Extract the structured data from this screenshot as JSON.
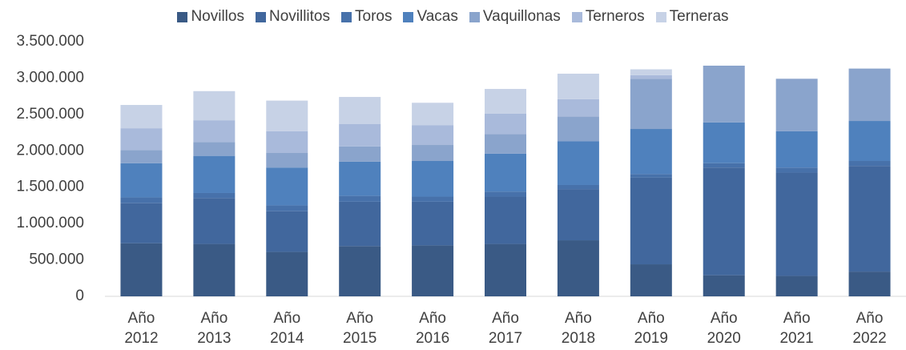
{
  "chart_data": {
    "type": "stacked_bar",
    "categories": [
      "Año 2012",
      "Año 2013",
      "Año 2014",
      "Año 2015",
      "Año 2016",
      "Año 2017",
      "Año 2018",
      "Año 2019",
      "Año 2020",
      "Año 2021",
      "Año 2022"
    ],
    "series": [
      {
        "name": "Novillos",
        "color": "#3a5a85",
        "values": [
          730000,
          720000,
          610000,
          690000,
          700000,
          720000,
          770000,
          440000,
          290000,
          280000,
          340000
        ]
      },
      {
        "name": "Novillitos",
        "color": "#41679d",
        "values": [
          550000,
          630000,
          560000,
          610000,
          600000,
          650000,
          700000,
          1190000,
          1480000,
          1420000,
          1450000
        ]
      },
      {
        "name": "Toros",
        "color": "#4771aa",
        "values": [
          80000,
          70000,
          80000,
          80000,
          70000,
          70000,
          60000,
          50000,
          60000,
          70000,
          70000
        ]
      },
      {
        "name": "Vacas",
        "color": "#4f81bd",
        "values": [
          470000,
          510000,
          520000,
          470000,
          490000,
          520000,
          600000,
          620000,
          560000,
          500000,
          550000
        ]
      },
      {
        "name": "Vaquillonas",
        "color": "#8aa4cc",
        "values": [
          180000,
          190000,
          200000,
          210000,
          220000,
          270000,
          340000,
          690000,
          780000,
          720000,
          720000
        ]
      },
      {
        "name": "Terneros",
        "color": "#a9badb",
        "values": [
          300000,
          300000,
          300000,
          310000,
          270000,
          280000,
          240000,
          50000,
          0,
          0,
          0
        ]
      },
      {
        "name": "Terneras",
        "color": "#c7d2e6",
        "values": [
          320000,
          400000,
          420000,
          370000,
          310000,
          340000,
          350000,
          80000,
          0,
          0,
          0
        ]
      }
    ],
    "ylim": [
      0,
      3500000
    ],
    "yticks": [
      0,
      {
        "value": 500000,
        "label": "500.000"
      },
      {
        "value": 1000000,
        "label": "1.000.000"
      },
      {
        "value": 1500000,
        "label": "1.500.000"
      },
      {
        "value": 2000000,
        "label": "2.000.000"
      },
      {
        "value": 2500000,
        "label": "2.500.000"
      },
      {
        "value": 3000000,
        "label": "3.000.000"
      },
      {
        "value": 3500000,
        "label": "3.500.000"
      }
    ],
    "legend": "top"
  }
}
